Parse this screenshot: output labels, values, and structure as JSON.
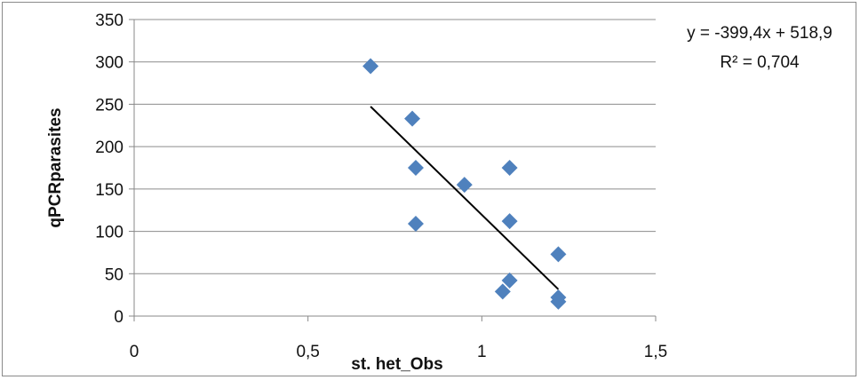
{
  "chart_data": {
    "type": "scatter",
    "xlabel": "st. het_Obs",
    "ylabel": "qPCRparasites",
    "xlim": [
      0,
      1.5
    ],
    "ylim": [
      0,
      350
    ],
    "x_ticks": [
      "0",
      "0,5",
      "1",
      "1,5"
    ],
    "y_ticks": [
      "0",
      "50",
      "100",
      "150",
      "200",
      "250",
      "300",
      "350"
    ],
    "grid": "horizontal",
    "series": [
      {
        "marker": "diamond",
        "color": "#4f81bd",
        "points": [
          {
            "x": 0.68,
            "y": 295
          },
          {
            "x": 0.8,
            "y": 233
          },
          {
            "x": 0.81,
            "y": 175
          },
          {
            "x": 0.81,
            "y": 109
          },
          {
            "x": 0.95,
            "y": 155
          },
          {
            "x": 1.06,
            "y": 29
          },
          {
            "x": 1.08,
            "y": 175
          },
          {
            "x": 1.08,
            "y": 112
          },
          {
            "x": 1.08,
            "y": 42
          },
          {
            "x": 1.22,
            "y": 73
          },
          {
            "x": 1.22,
            "y": 22
          },
          {
            "x": 1.22,
            "y": 17
          }
        ]
      }
    ],
    "trendline": {
      "slope": -399.4,
      "intercept": 518.9,
      "x_range": [
        0.68,
        1.22
      ],
      "color": "#000000",
      "equation_label": "y = -399,4x + 518,9",
      "r2_label": "R² = 0,704"
    }
  }
}
